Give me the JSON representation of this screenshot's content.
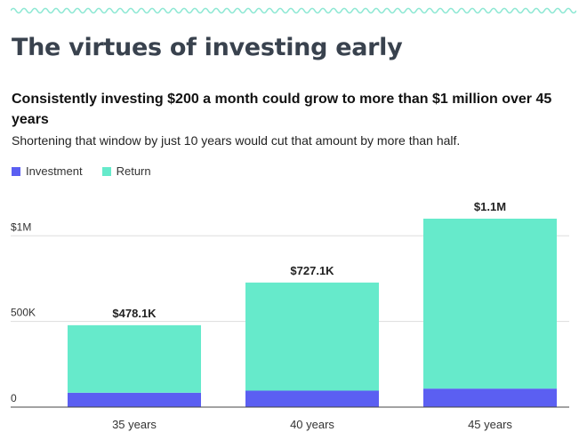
{
  "title": "The virtues of investing early",
  "subtitle": "Consistently investing $200 a month could grow to more than $1 million over 45 years",
  "note": "Shortening that window by just 10 years would cut that amount by more than half.",
  "colors": {
    "investment": "#5b5ff2",
    "return": "#66eacb",
    "accent_wave": "#8ee8d4",
    "grid": "#dddddd",
    "axis": "#444444"
  },
  "legend": [
    {
      "label": "Investment",
      "color": "#5b5ff2"
    },
    {
      "label": "Return",
      "color": "#66eacb"
    }
  ],
  "chart_data": {
    "type": "bar",
    "stacked": true,
    "categories": [
      "35 years",
      "40 years",
      "45 years"
    ],
    "series": [
      {
        "name": "Investment",
        "values": [
          84000,
          96000,
          108000
        ]
      },
      {
        "name": "Return",
        "values": [
          394100,
          631100,
          992000
        ]
      }
    ],
    "totals": [
      478100,
      727100,
      1100000
    ],
    "data_labels": [
      "$478.1K",
      "$727.1K",
      "$1.1M"
    ],
    "ylim": [
      0,
      1100000
    ],
    "yticks": [
      {
        "value": 0,
        "label": "0"
      },
      {
        "value": 500000,
        "label": "500K"
      },
      {
        "value": 1000000,
        "label": "$1M"
      }
    ],
    "grid": true,
    "legend_position": "top-left"
  }
}
